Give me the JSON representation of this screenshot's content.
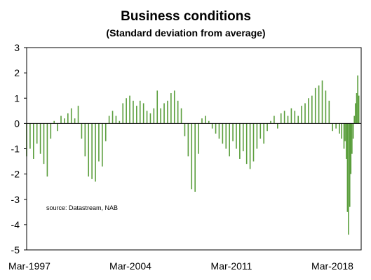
{
  "chart_data": {
    "type": "bar",
    "title": "Business conditions",
    "subtitle": "(Standard deviation from average)",
    "source": "source:  Datastream, NAB",
    "ylim": [
      -5,
      3
    ],
    "y_ticks": [
      "3",
      "2",
      "1",
      "0",
      "-1",
      "-2",
      "-3",
      "-4",
      "-5"
    ],
    "x_ticks": [
      "Mar-1997",
      "Mar-2004",
      "Mar-2011",
      "Mar-2018"
    ],
    "x_range": [
      1997.17,
      2021.5
    ],
    "grid": false,
    "bar_color": "#5a9e3c",
    "series": [
      {
        "x": [
          1997.17,
          1997.42,
          1997.67,
          1997.92,
          1998.17,
          1998.42,
          1998.67,
          1998.92,
          1999.17,
          1999.42,
          1999.67,
          1999.92,
          2000.17,
          2000.42,
          2000.67,
          2000.92,
          2001.17,
          2001.42,
          2001.67,
          2001.92,
          2002.17,
          2002.42,
          2002.67,
          2002.92,
          2003.17,
          2003.42,
          2003.67,
          2003.92,
          2004.17,
          2004.42,
          2004.67,
          2004.92,
          2005.17,
          2005.42,
          2005.67,
          2005.92,
          2006.17,
          2006.42,
          2006.67,
          2006.92,
          2007.17,
          2007.42,
          2007.67,
          2007.92,
          2008.17,
          2008.42,
          2008.67,
          2008.92,
          2009.17,
          2009.42,
          2009.67,
          2009.92,
          2010.17,
          2010.42,
          2010.67,
          2010.92,
          2011.17,
          2011.42,
          2011.67,
          2011.92,
          2012.17,
          2012.42,
          2012.67,
          2012.92,
          2013.17,
          2013.42,
          2013.67,
          2013.92,
          2014.17,
          2014.42,
          2014.67,
          2014.92,
          2015.17,
          2015.42,
          2015.67,
          2015.92,
          2016.17,
          2016.42,
          2016.67,
          2016.92,
          2017.17,
          2017.42,
          2017.67,
          2017.92,
          2018.17,
          2018.42,
          2018.67,
          2018.92,
          2019.17,
          2019.42,
          2019.67,
          2019.92,
          2020.08,
          2020.25,
          2020.33,
          2020.42,
          2020.5,
          2020.58,
          2020.67,
          2020.75,
          2020.83,
          2020.92,
          2021.0,
          2021.08,
          2021.17,
          2021.25,
          2021.33
        ],
        "values": [
          -1.3,
          -1.0,
          -1.4,
          -0.8,
          -1.2,
          -1.6,
          -2.1,
          -0.6,
          0.1,
          -0.3,
          0.3,
          0.2,
          0.4,
          0.6,
          0.2,
          0.7,
          -0.6,
          -1.3,
          -2.1,
          -2.2,
          -2.3,
          -1.5,
          -1.7,
          -0.7,
          0.3,
          0.5,
          0.3,
          0.1,
          0.8,
          1.0,
          1.1,
          0.9,
          0.7,
          0.9,
          0.8,
          0.5,
          0.4,
          0.6,
          1.3,
          0.6,
          0.8,
          0.9,
          1.2,
          1.3,
          0.9,
          0.6,
          -0.5,
          -1.3,
          -2.6,
          -2.7,
          -1.2,
          0.2,
          0.3,
          0.1,
          -0.2,
          -0.4,
          -0.6,
          -0.8,
          -1.0,
          -1.3,
          -0.7,
          -1.0,
          -1.4,
          -1.1,
          -1.6,
          -1.8,
          -1.5,
          -1.0,
          -0.6,
          -0.8,
          -0.3,
          0.1,
          0.3,
          -0.2,
          0.4,
          0.5,
          0.3,
          0.6,
          0.5,
          0.3,
          0.7,
          0.8,
          1.0,
          1.1,
          1.4,
          1.5,
          1.7,
          1.3,
          0.9,
          -0.3,
          -0.2,
          -0.4,
          -0.6,
          -1.0,
          -0.7,
          -1.4,
          -3.5,
          -4.4,
          -3.3,
          -2.0,
          -1.2,
          -0.6,
          0.3,
          0.8,
          1.2,
          1.9,
          1.1
        ]
      }
    ]
  }
}
